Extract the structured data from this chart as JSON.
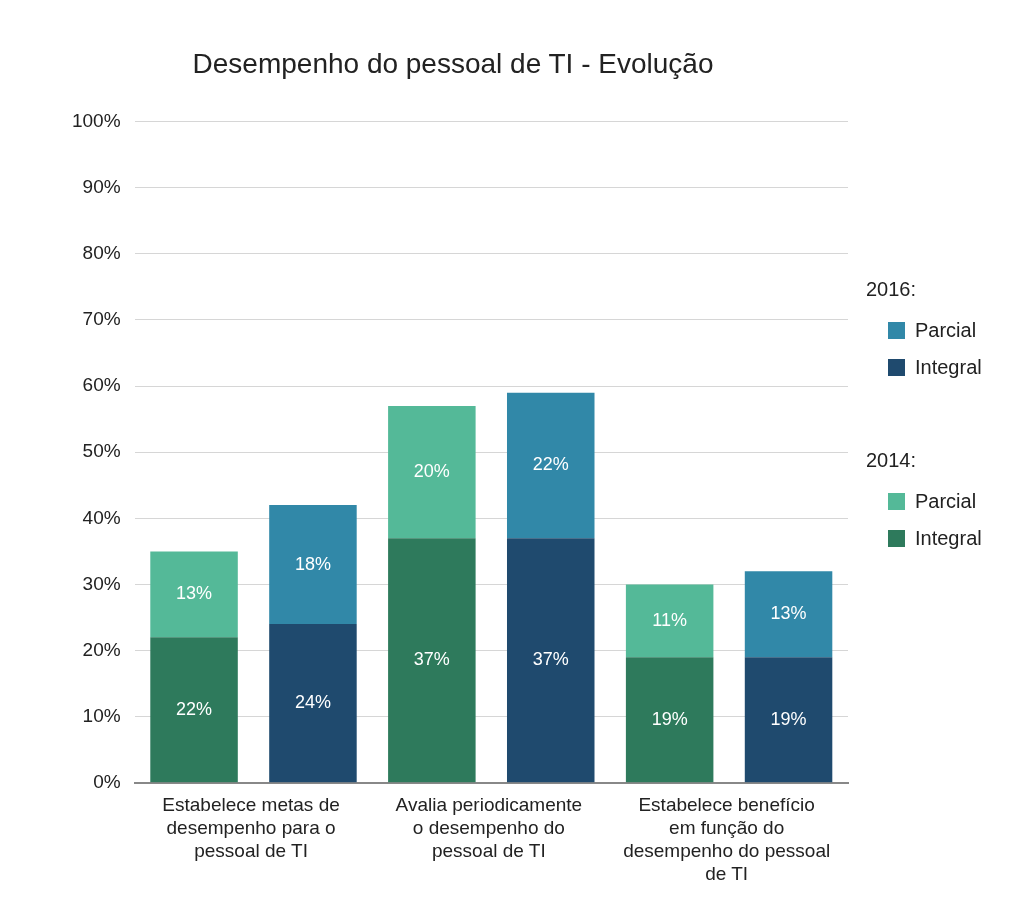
{
  "chart_data": {
    "type": "bar",
    "title": "Desempenho do pessoal de TI - Evolução",
    "categories": [
      "Estabelece metas de desempenho para o pessoal de TI",
      null,
      "Avalia periodicamente o desempenho do pessoal de TI",
      null,
      "Estabelece benefício em função do desempenho do pessoal de TI",
      null
    ],
    "series": [
      {
        "name": "Integral",
        "color": "#2e7a5c",
        "values": [
          22,
          null,
          37,
          null,
          19,
          null
        ],
        "value_labels": [
          "22%",
          null,
          "37%",
          null,
          "19%",
          null
        ]
      },
      {
        "name": "Parcial",
        "color": "#54b998",
        "values": [
          13,
          null,
          20,
          null,
          11,
          null
        ],
        "value_labels": [
          "13%",
          null,
          "20%",
          null,
          "11%",
          null
        ]
      },
      {
        "name": "Integral",
        "color": "#1f4a6e",
        "values": [
          null,
          24,
          null,
          37,
          null,
          19
        ],
        "value_labels": [
          null,
          "24%",
          null,
          "37%",
          null,
          "19%"
        ]
      },
      {
        "name": "Parcial",
        "color": "#3188a8",
        "values": [
          null,
          18,
          null,
          22,
          null,
          13
        ],
        "value_labels": [
          null,
          "18%",
          null,
          "22%",
          null,
          "13%"
        ]
      }
    ],
    "annotations": [
      "2014:",
      "2016:"
    ],
    "stacked": true,
    "ylim": [
      0,
      100
    ],
    "yticks": [
      {
        "value": 0,
        "label": "0%"
      },
      {
        "value": 10,
        "label": "10%"
      },
      {
        "value": 20,
        "label": "20%"
      },
      {
        "value": 30,
        "label": "30%"
      },
      {
        "value": 40,
        "label": "40%"
      },
      {
        "value": 50,
        "label": "50%"
      },
      {
        "value": 60,
        "label": "60%"
      },
      {
        "value": 70,
        "label": "70%"
      },
      {
        "value": 80,
        "label": "80%"
      },
      {
        "value": 90,
        "label": "90%"
      },
      {
        "value": 100,
        "label": "100%"
      }
    ],
    "grid": "y",
    "legend": "right"
  }
}
